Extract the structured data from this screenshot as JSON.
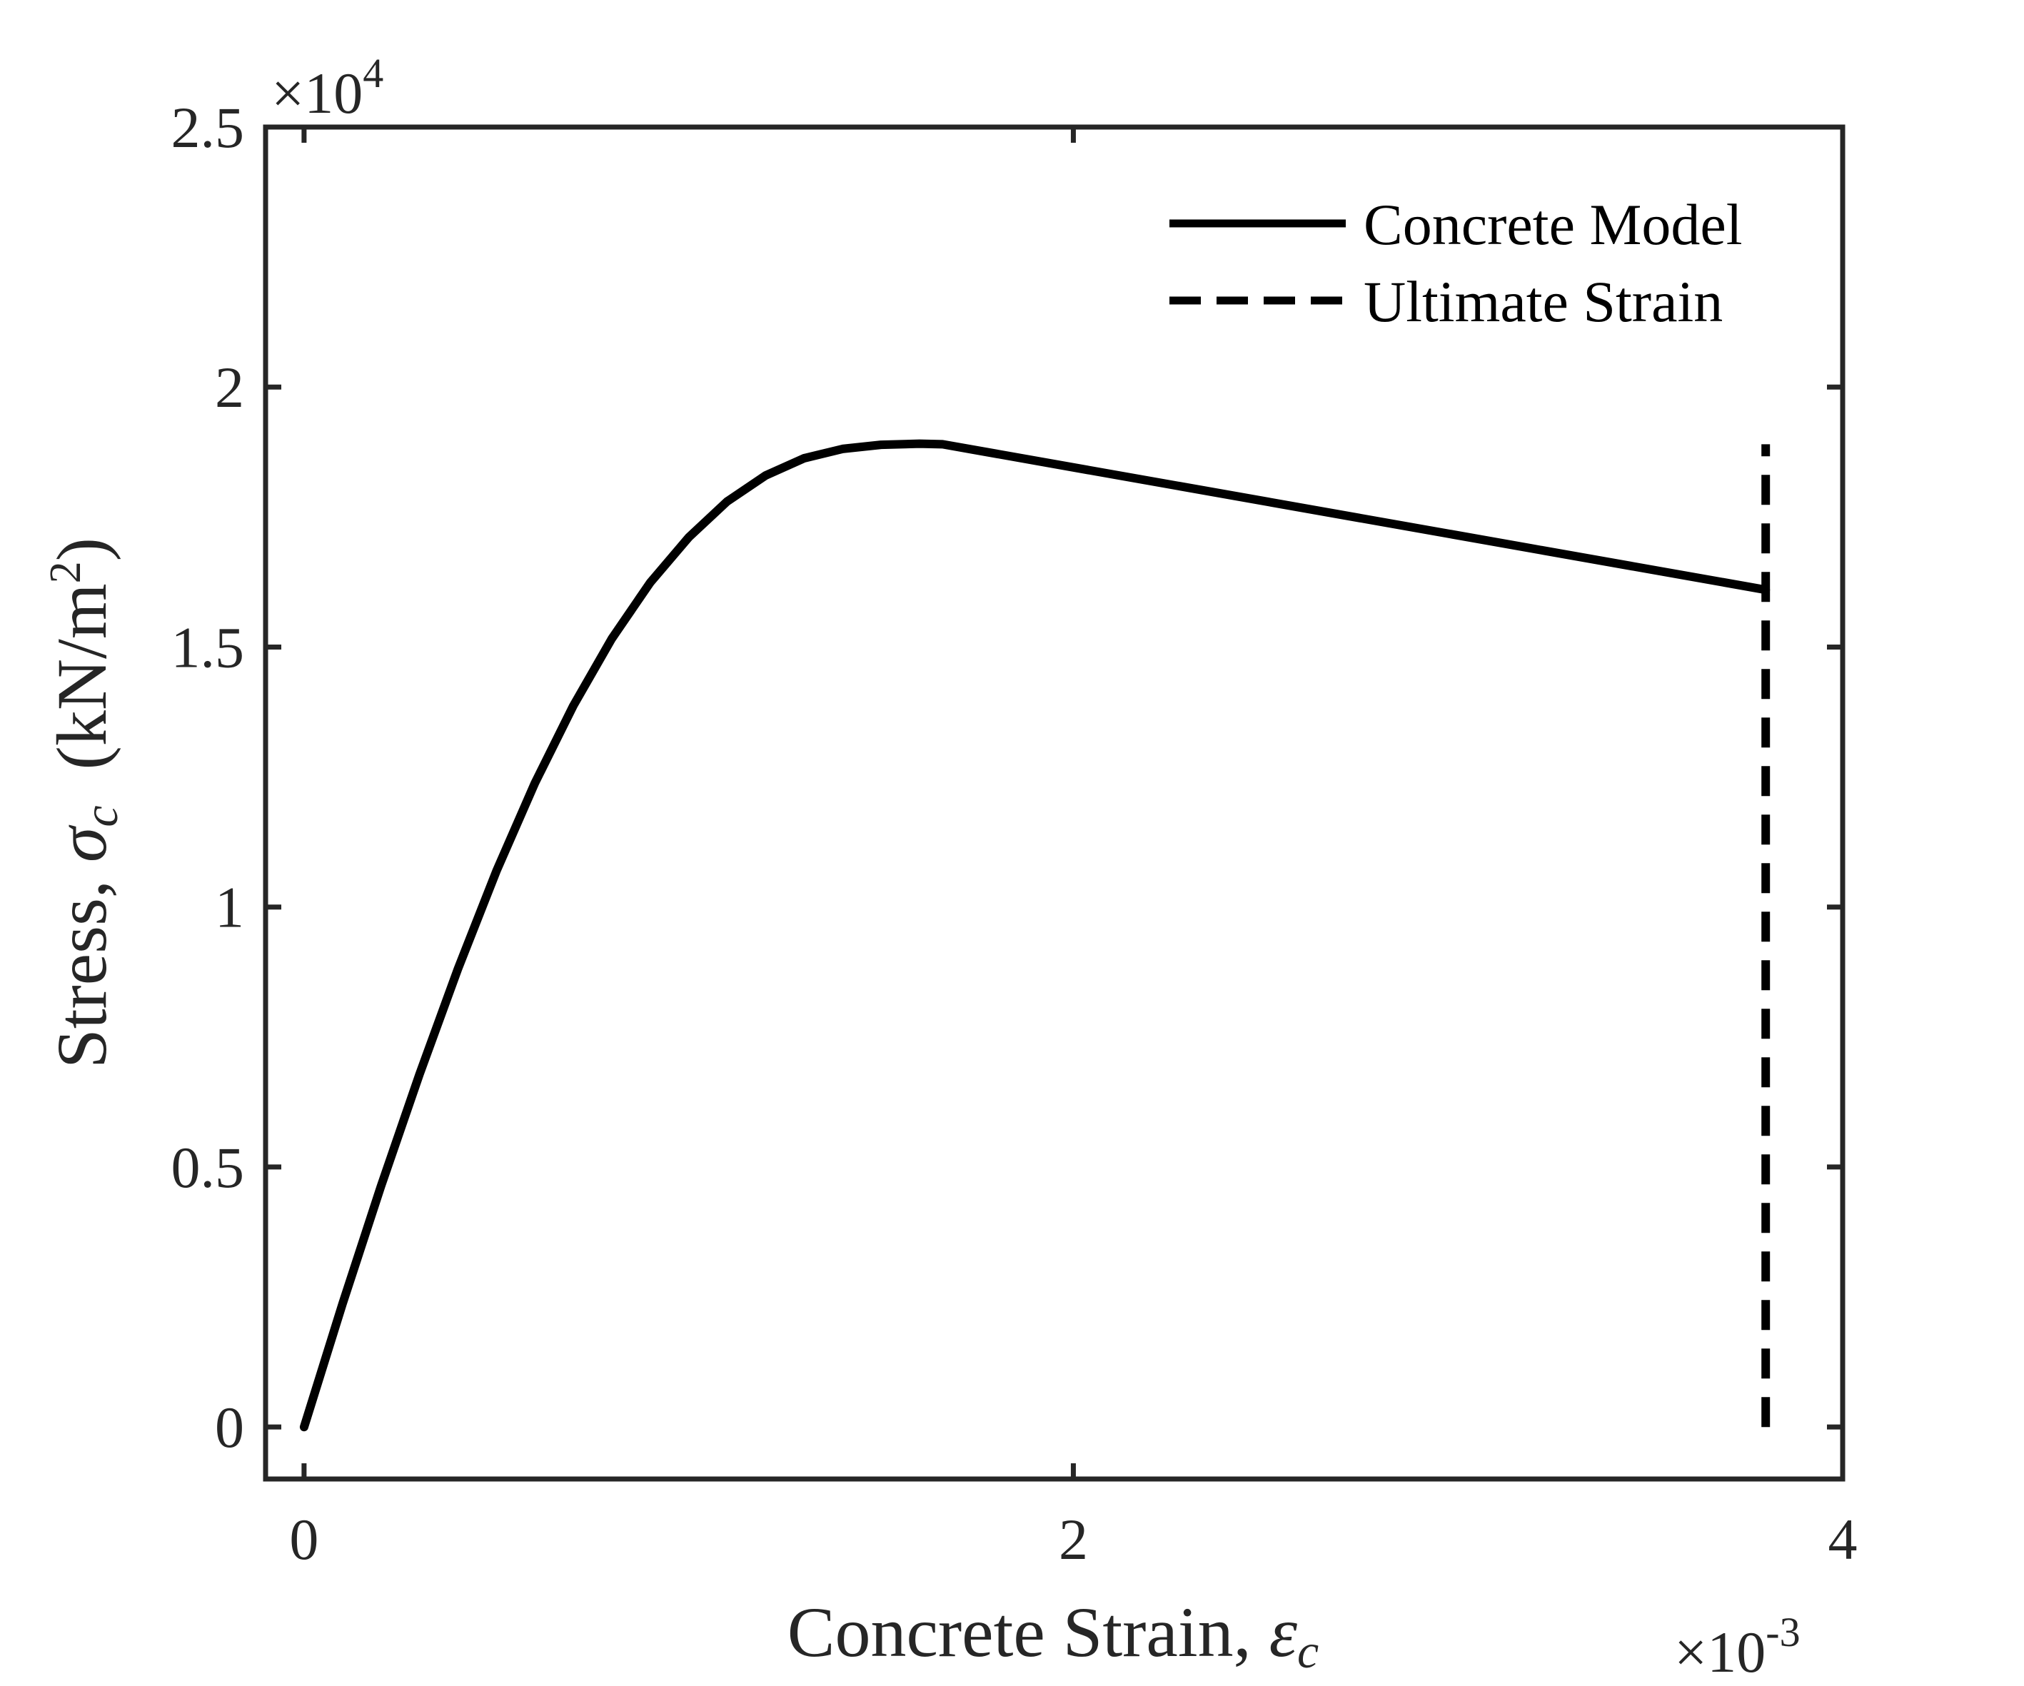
{
  "chart_data": {
    "type": "line",
    "xlabel": {
      "text": "Concrete Strain, ",
      "symbol": "ε",
      "sub": "c"
    },
    "ylabel": {
      "text": "Stress, ",
      "symbol": "σ",
      "sub": "c",
      "unit_pre": "  (kN/m",
      "unit_sup": "2",
      "unit_post": ")"
    },
    "x_exponent": {
      "base": "×10",
      "power": "-3"
    },
    "y_exponent": {
      "base": "×10",
      "power": "4"
    },
    "xlim": [
      -0.1,
      4.0
    ],
    "ylim": [
      -0.1,
      2.5
    ],
    "x_ticks": [
      0,
      2,
      4
    ],
    "x_tick_labels": [
      "0",
      "2",
      "4"
    ],
    "y_ticks": [
      0,
      0.5,
      1,
      1.5,
      2,
      2.5
    ],
    "y_tick_labels": [
      "0",
      "0.5",
      "1",
      "1.5",
      "2",
      "2.5"
    ],
    "grid": false,
    "legend_position": "top-right",
    "series": [
      {
        "name": "Concrete Model",
        "style": "solid",
        "color": "#000000",
        "x": [
          0,
          0.1,
          0.2,
          0.3,
          0.4,
          0.5,
          0.6,
          0.7,
          0.8,
          0.9,
          1.0,
          1.1,
          1.2,
          1.3,
          1.4,
          1.5,
          1.6,
          1.66,
          3.8
        ],
        "y": [
          0,
          0.237,
          0.463,
          0.678,
          0.881,
          1.069,
          1.238,
          1.387,
          1.516,
          1.624,
          1.711,
          1.78,
          1.83,
          1.863,
          1.881,
          1.889,
          1.891,
          1.89,
          1.61
        ]
      },
      {
        "name": "Ultimate Strain",
        "style": "dashed",
        "color": "#000000",
        "x": [
          3.8,
          3.8
        ],
        "y": [
          0,
          1.89
        ]
      }
    ]
  }
}
